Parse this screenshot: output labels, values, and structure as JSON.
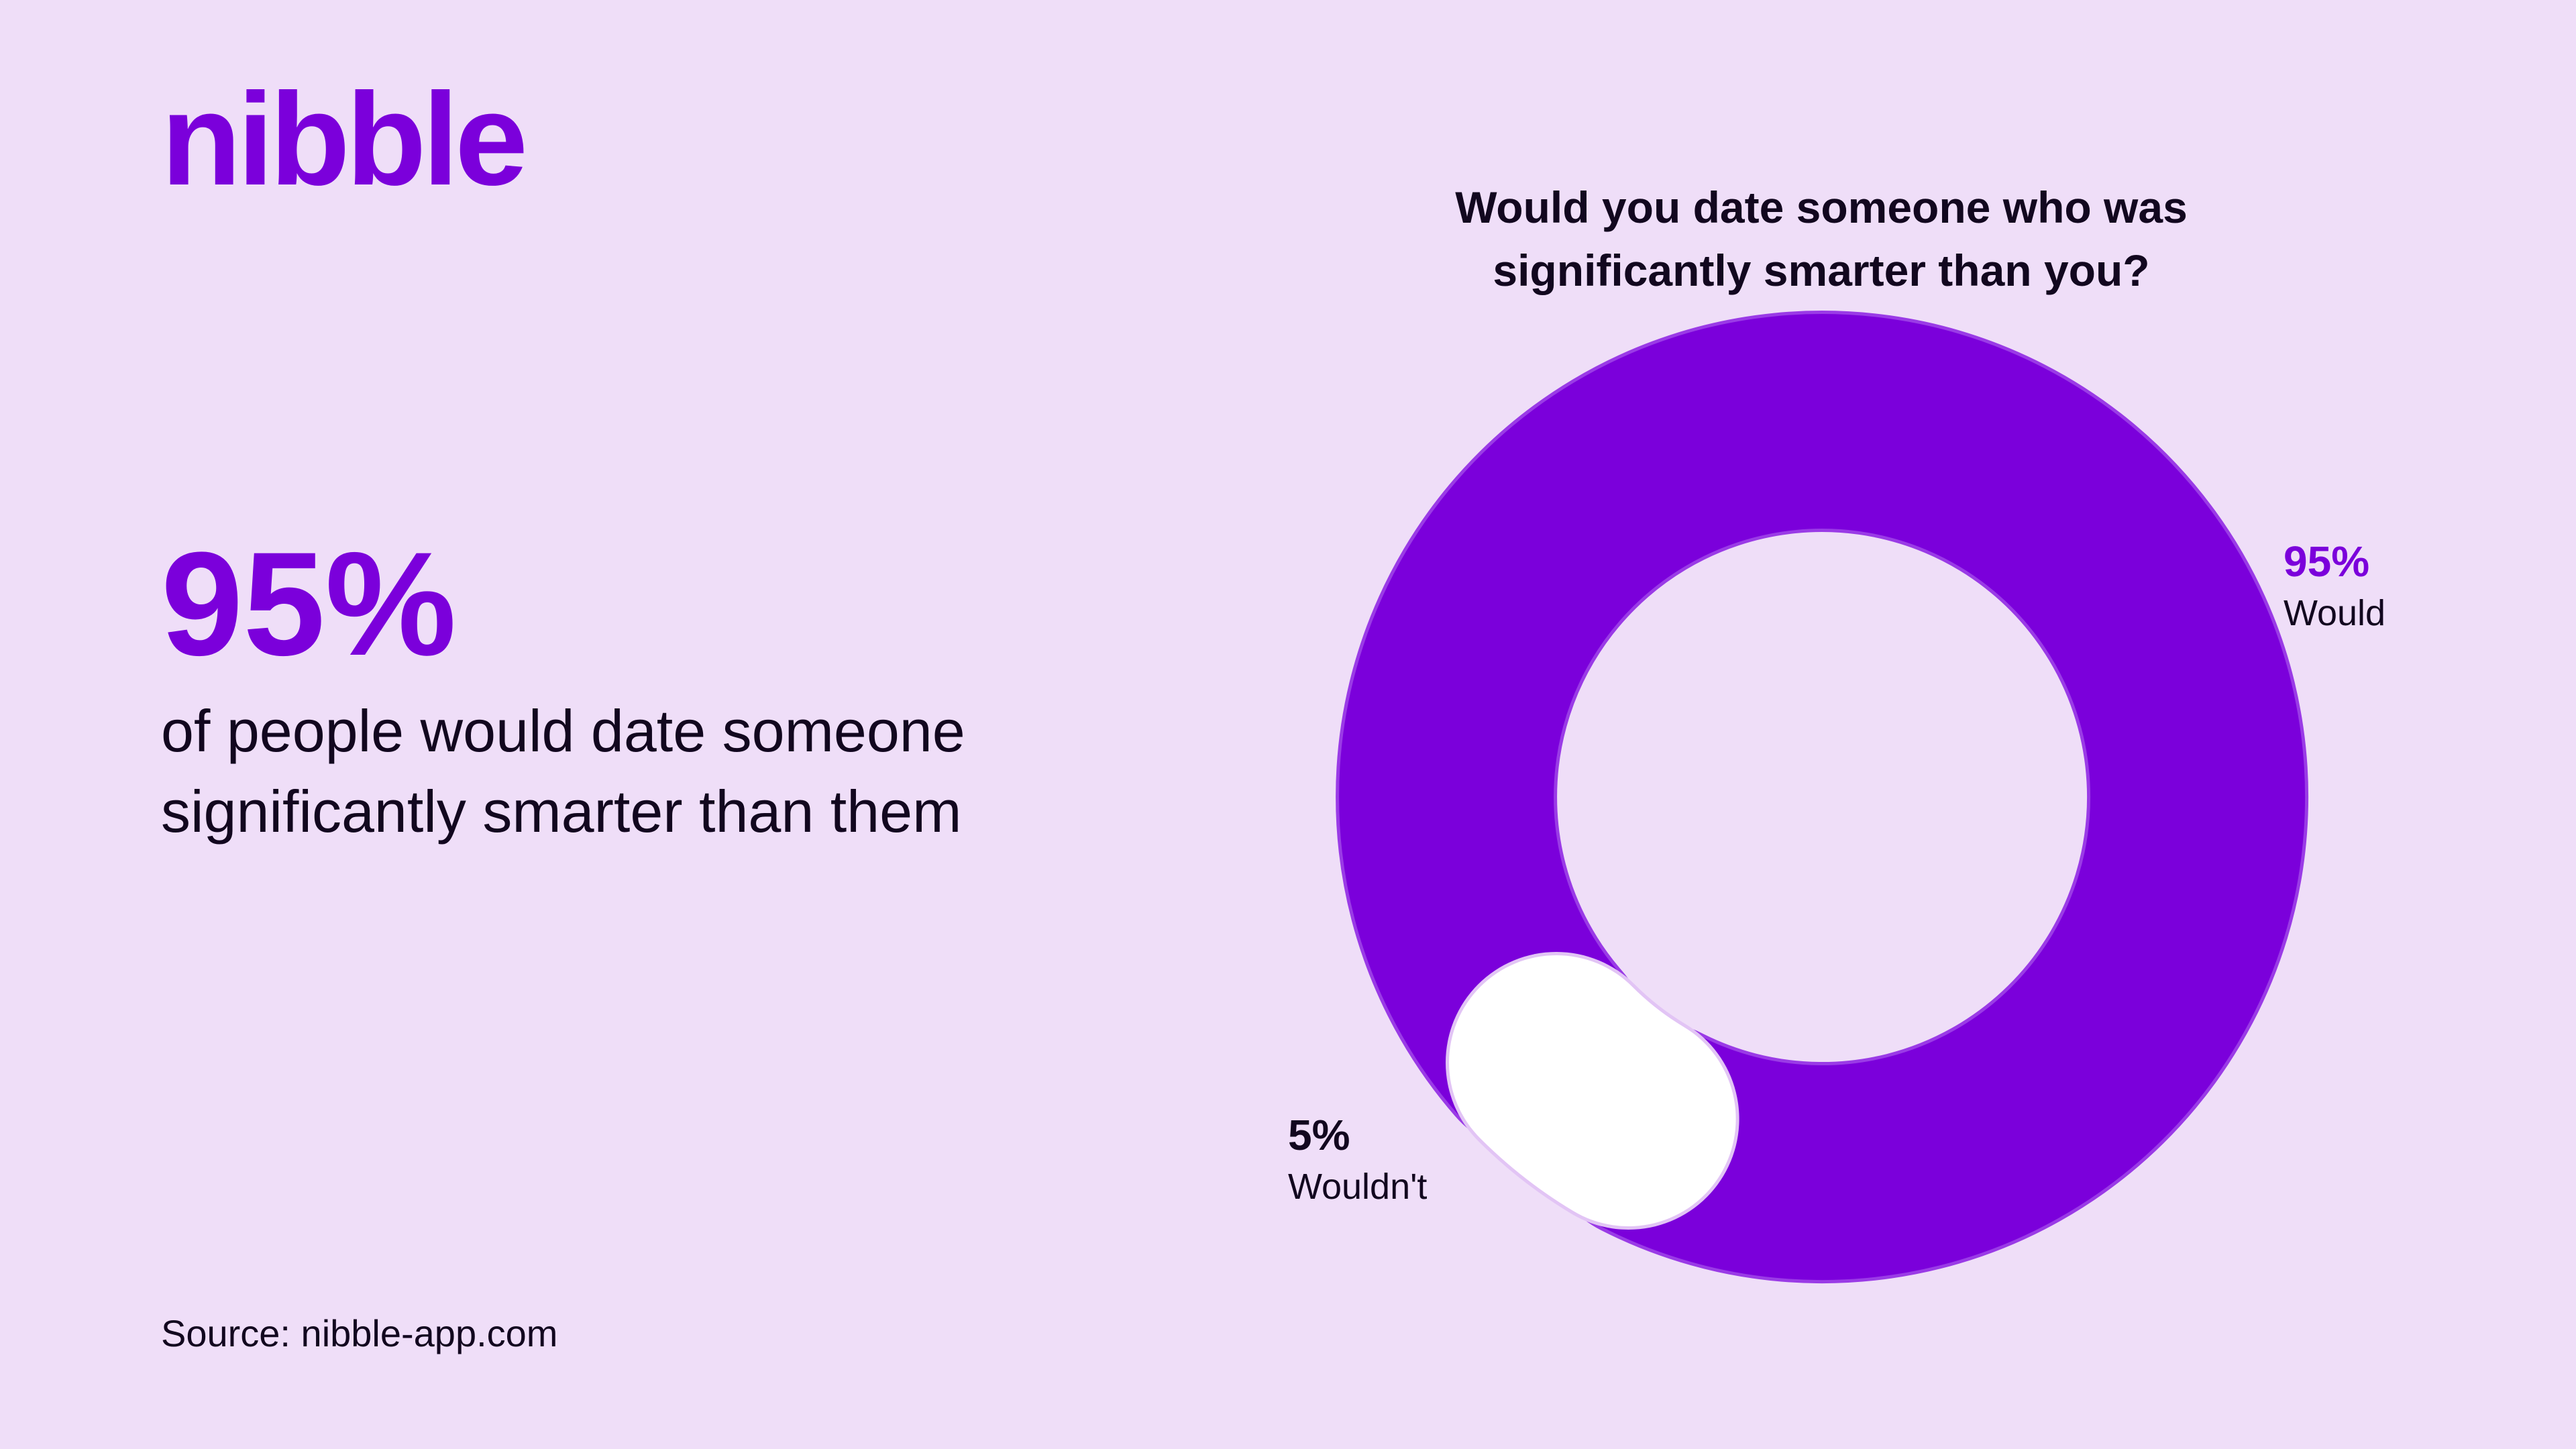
{
  "brand": {
    "logo_text": "nibble",
    "accent_color": "#7B00DB",
    "background_color": "#EFDEF8"
  },
  "headline": {
    "value": "95%",
    "text": "of people would date someone significantly smarter than them"
  },
  "source": "Source: nibble-app.com",
  "chart_data": {
    "type": "pie",
    "title": "Would you date someone who was significantly smarter than you?",
    "subtitle": "",
    "donut": true,
    "categories": [
      "Would",
      "Wouldn't"
    ],
    "values": [
      95,
      5
    ],
    "value_labels": [
      "95%",
      "5%"
    ],
    "colors": [
      "#7B00DB",
      "#FFFFFF"
    ],
    "legend": "none"
  }
}
